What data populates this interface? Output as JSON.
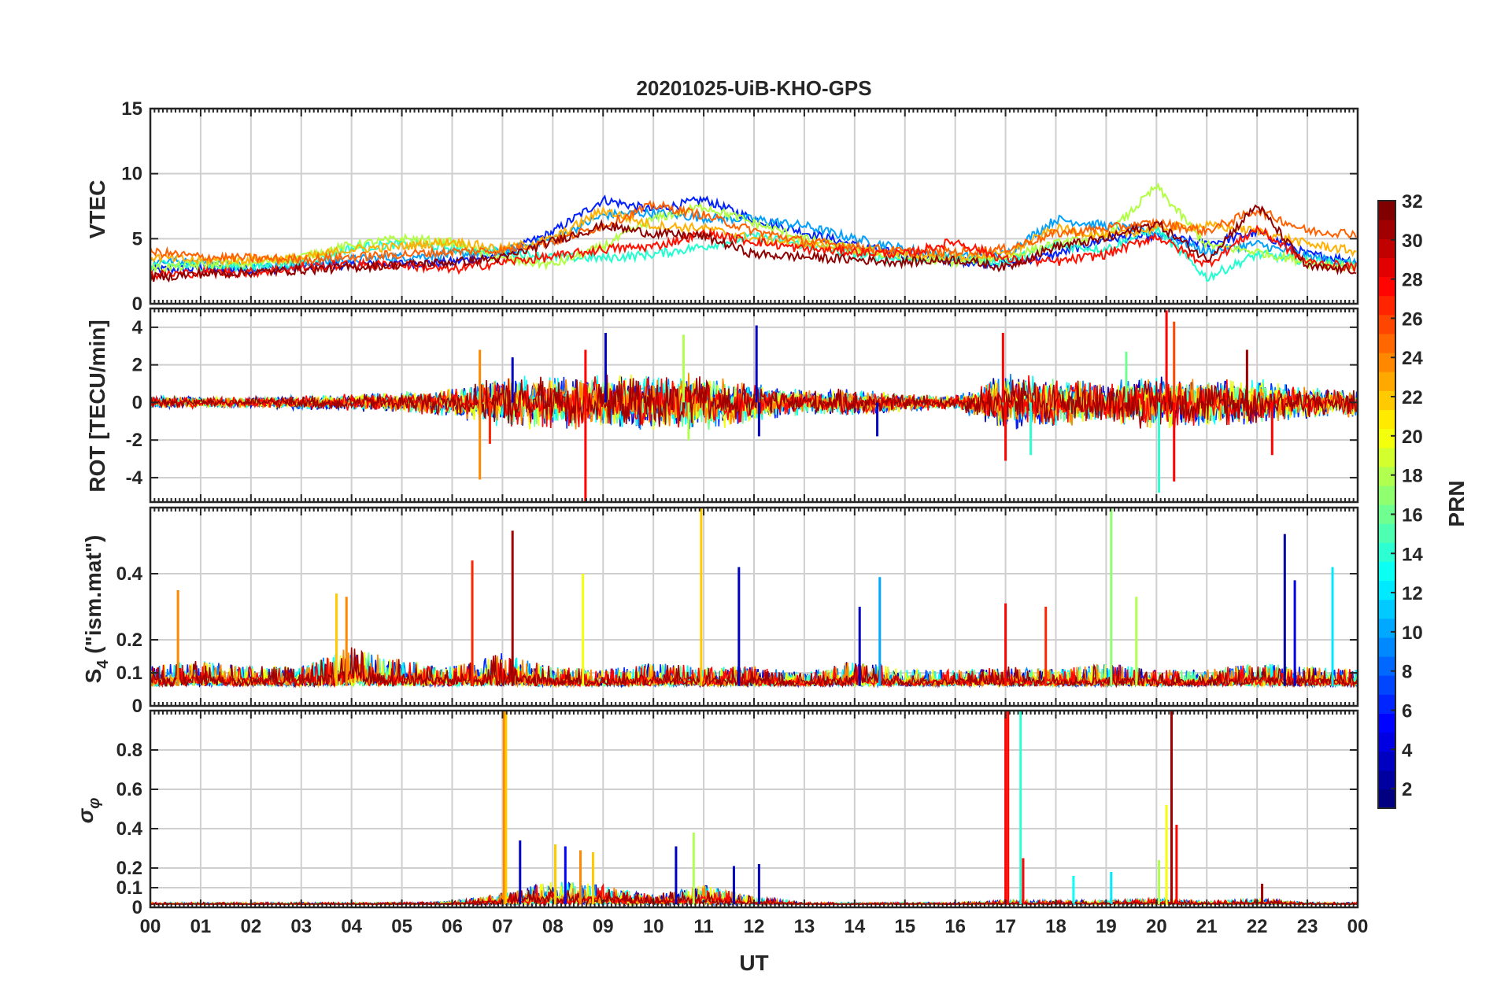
{
  "figure": {
    "title": "20201025-UiB-KHO-GPS",
    "xlabel": "UT",
    "x_tick_labels": [
      "00",
      "01",
      "02",
      "03",
      "04",
      "05",
      "06",
      "07",
      "08",
      "09",
      "10",
      "11",
      "12",
      "13",
      "14",
      "15",
      "16",
      "17",
      "18",
      "19",
      "20",
      "21",
      "22",
      "23",
      "00"
    ],
    "colorbar": {
      "label": "PRN",
      "range": [
        1,
        32
      ],
      "tick_values": [
        2,
        4,
        6,
        8,
        10,
        12,
        14,
        16,
        18,
        20,
        22,
        24,
        26,
        28,
        30,
        32
      ],
      "tick_labels": [
        "2",
        "4",
        "6",
        "8",
        "10",
        "12",
        "14",
        "16",
        "18",
        "20",
        "22",
        "24",
        "26",
        "28",
        "30",
        "32"
      ],
      "colormap": "jet"
    }
  },
  "chart_data": [
    {
      "type": "line",
      "panel": "vtec",
      "ylabel": "VTEC",
      "xlim": [
        0,
        24
      ],
      "ylim": [
        0,
        15
      ],
      "y_tick_labels": [
        "0",
        "5",
        "10",
        "15"
      ],
      "y_tick_values": [
        0,
        5,
        10,
        15
      ],
      "grid": true,
      "x_unit": "hours UT",
      "series": [
        {
          "prn": 3,
          "color": "#0020ff",
          "x": [
            0,
            1,
            2,
            3,
            4,
            5,
            6,
            7,
            8,
            9,
            10,
            11,
            12,
            13,
            14,
            15,
            16,
            17,
            18,
            19,
            20,
            21,
            22,
            23,
            24
          ],
          "y": [
            2.6,
            2.7,
            2.6,
            2.9,
            3.0,
            3.1,
            3.2,
            3.8,
            5.5,
            8.0,
            7.2,
            8.0,
            6.5,
            5.5,
            4.5,
            3.7,
            3.3,
            3.1,
            3.8,
            5.0,
            5.2,
            4.6,
            5.5,
            3.8,
            3.3
          ]
        },
        {
          "prn": 9,
          "color": "#00a0ff",
          "x": [
            0,
            1,
            2,
            3,
            4,
            5,
            6,
            7,
            8,
            9,
            10,
            11,
            12,
            13,
            14,
            15,
            16,
            17,
            18,
            19,
            20,
            21,
            22,
            23,
            24
          ],
          "y": [
            3.3,
            3.2,
            2.8,
            3.0,
            3.4,
            3.6,
            3.8,
            4.0,
            5.0,
            6.8,
            7.0,
            6.6,
            6.5,
            6.0,
            5.0,
            4.2,
            3.6,
            3.8,
            6.5,
            6.0,
            5.5,
            4.0,
            4.6,
            3.6,
            3.0
          ]
        },
        {
          "prn": 14,
          "color": "#20ffd0",
          "x": [
            0,
            1,
            2,
            3,
            4,
            5,
            6,
            7,
            8,
            9,
            10,
            11,
            12,
            13,
            14,
            15,
            16,
            17,
            18,
            19,
            20,
            21,
            22,
            23,
            24
          ],
          "y": [
            3.0,
            2.9,
            2.8,
            3.2,
            4.3,
            4.6,
            4.3,
            4.0,
            3.6,
            3.5,
            3.8,
            4.4,
            5.2,
            4.5,
            3.8,
            3.4,
            3.6,
            3.2,
            4.5,
            4.2,
            5.8,
            2.0,
            3.8,
            3.3,
            3.0
          ]
        },
        {
          "prn": 18,
          "color": "#b0ff40",
          "x": [
            0,
            1,
            2,
            3,
            4,
            5,
            6,
            7,
            8,
            9,
            10,
            11,
            12,
            13,
            14,
            15,
            16,
            17,
            18,
            19,
            20,
            21,
            22,
            23,
            24
          ],
          "y": [
            2.7,
            3.0,
            3.1,
            3.6,
            4.5,
            5.0,
            4.7,
            3.4,
            3.0,
            4.4,
            6.5,
            7.5,
            6.2,
            5.0,
            4.2,
            3.6,
            3.2,
            3.6,
            4.6,
            5.2,
            9.0,
            4.5,
            4.0,
            3.2,
            2.8
          ]
        },
        {
          "prn": 22,
          "color": "#ffb000",
          "x": [
            0,
            1,
            2,
            3,
            4,
            5,
            6,
            7,
            8,
            9,
            10,
            11,
            12,
            13,
            14,
            15,
            16,
            17,
            18,
            19,
            20,
            21,
            22,
            23,
            24
          ],
          "y": [
            3.6,
            3.3,
            3.4,
            3.5,
            4.2,
            4.4,
            4.8,
            4.2,
            5.0,
            7.2,
            6.0,
            5.8,
            5.0,
            4.6,
            4.2,
            3.8,
            3.6,
            3.8,
            5.8,
            5.2,
            5.8,
            6.0,
            5.6,
            4.6,
            4.0
          ]
        },
        {
          "prn": 26,
          "color": "#ff6000",
          "x": [
            0,
            1,
            2,
            3,
            4,
            5,
            6,
            7,
            8,
            9,
            10,
            11,
            12,
            13,
            14,
            15,
            16,
            17,
            18,
            19,
            20,
            21,
            22,
            23,
            24
          ],
          "y": [
            4.0,
            3.6,
            3.5,
            3.4,
            3.6,
            3.8,
            4.0,
            4.1,
            4.8,
            6.0,
            7.6,
            6.8,
            5.6,
            4.8,
            4.4,
            4.0,
            4.0,
            4.2,
            5.4,
            5.8,
            6.2,
            5.6,
            7.2,
            5.6,
            5.4
          ]
        },
        {
          "prn": 28,
          "color": "#ff1000",
          "x": [
            0,
            1,
            2,
            3,
            4,
            5,
            6,
            7,
            8,
            9,
            10,
            11,
            12,
            13,
            14,
            15,
            16,
            17,
            18,
            19,
            20,
            21,
            22,
            23,
            24
          ],
          "y": [
            2.2,
            2.4,
            2.4,
            2.8,
            3.0,
            3.0,
            2.6,
            3.2,
            3.6,
            4.2,
            4.4,
            5.4,
            4.8,
            4.2,
            4.0,
            3.8,
            4.8,
            3.4,
            3.2,
            3.8,
            5.2,
            3.0,
            5.8,
            3.2,
            2.8
          ]
        },
        {
          "prn": 31,
          "color": "#900000",
          "x": [
            0,
            1,
            2,
            3,
            4,
            5,
            6,
            7,
            8,
            9,
            10,
            11,
            12,
            13,
            14,
            15,
            16,
            17,
            18,
            19,
            20,
            21,
            22,
            23,
            24
          ],
          "y": [
            2.0,
            2.3,
            2.4,
            2.6,
            2.8,
            3.0,
            3.2,
            3.5,
            4.8,
            6.0,
            5.4,
            5.2,
            3.8,
            3.6,
            3.4,
            3.2,
            3.4,
            2.8,
            4.4,
            5.0,
            6.2,
            3.4,
            7.6,
            2.8,
            2.6
          ]
        }
      ]
    },
    {
      "type": "line",
      "panel": "rot",
      "ylabel": "ROT [TECU/min]",
      "xlim": [
        0,
        24
      ],
      "ylim": [
        -5.3,
        5
      ],
      "y_tick_labels": [
        "-4",
        "-2",
        "0",
        "2",
        "4"
      ],
      "y_tick_values": [
        -4,
        -2,
        0,
        2,
        4
      ],
      "grid": true,
      "x_unit": "hours UT",
      "baseline": 0,
      "spikes": [
        {
          "x": 6.55,
          "y": -4.1,
          "prn": 24
        },
        {
          "x": 6.55,
          "y": 2.8,
          "prn": 24
        },
        {
          "x": 6.75,
          "y": -2.2,
          "prn": 27
        },
        {
          "x": 7.2,
          "y": 2.4,
          "prn": 3
        },
        {
          "x": 8.65,
          "y": -5.3,
          "prn": 28
        },
        {
          "x": 8.65,
          "y": 2.8,
          "prn": 28
        },
        {
          "x": 9.05,
          "y": 3.7,
          "prn": 3
        },
        {
          "x": 10.6,
          "y": 3.6,
          "prn": 18
        },
        {
          "x": 10.7,
          "y": -2.0,
          "prn": 18
        },
        {
          "x": 12.05,
          "y": 4.1,
          "prn": 3
        },
        {
          "x": 12.1,
          "y": -1.8,
          "prn": 3
        },
        {
          "x": 14.45,
          "y": -1.8,
          "prn": 3
        },
        {
          "x": 16.95,
          "y": 3.7,
          "prn": 28
        },
        {
          "x": 17.0,
          "y": -3.1,
          "prn": 28
        },
        {
          "x": 17.5,
          "y": -2.8,
          "prn": 14
        },
        {
          "x": 19.4,
          "y": 2.7,
          "prn": 16
        },
        {
          "x": 20.05,
          "y": -4.8,
          "prn": 14
        },
        {
          "x": 20.2,
          "y": 4.9,
          "prn": 28
        },
        {
          "x": 20.35,
          "y": -4.2,
          "prn": 28
        },
        {
          "x": 20.35,
          "y": 4.3,
          "prn": 26
        },
        {
          "x": 21.8,
          "y": 2.8,
          "prn": 31
        },
        {
          "x": 22.3,
          "y": -2.8,
          "prn": 28
        }
      ],
      "noise_amplitude_by_hour": [
        0.4,
        0.3,
        0.3,
        0.4,
        0.5,
        0.6,
        0.8,
        1.4,
        1.6,
        1.5,
        1.6,
        1.6,
        1.1,
        0.7,
        0.8,
        0.5,
        0.4,
        1.6,
        1.4,
        1.2,
        1.6,
        1.3,
        1.3,
        0.9,
        0.8
      ]
    },
    {
      "type": "line",
      "panel": "s4",
      "ylabel": "S4 (\"ism.mat\")",
      "ylabel_main": "S",
      "ylabel_sub": "4",
      "ylabel_rest": " (\"ism.mat\")",
      "xlim": [
        0,
        24
      ],
      "ylim": [
        0,
        0.6
      ],
      "y_tick_labels": [
        "0",
        "0.1",
        "0.2",
        "0.4"
      ],
      "y_tick_values": [
        0,
        0.1,
        0.2,
        0.4
      ],
      "grid": true,
      "x_unit": "hours UT",
      "baseline": 0.06,
      "spikes": [
        {
          "x": 0.55,
          "y": 0.35,
          "prn": 24
        },
        {
          "x": 3.7,
          "y": 0.34,
          "prn": 22
        },
        {
          "x": 3.9,
          "y": 0.33,
          "prn": 24
        },
        {
          "x": 6.4,
          "y": 0.44,
          "prn": 27
        },
        {
          "x": 7.2,
          "y": 0.53,
          "prn": 31
        },
        {
          "x": 8.6,
          "y": 0.4,
          "prn": 20
        },
        {
          "x": 10.95,
          "y": 0.6,
          "prn": 22
        },
        {
          "x": 11.7,
          "y": 0.42,
          "prn": 3
        },
        {
          "x": 14.1,
          "y": 0.3,
          "prn": 3
        },
        {
          "x": 14.5,
          "y": 0.39,
          "prn": 10
        },
        {
          "x": 17.0,
          "y": 0.31,
          "prn": 28
        },
        {
          "x": 17.8,
          "y": 0.3,
          "prn": 27
        },
        {
          "x": 19.1,
          "y": 0.6,
          "prn": 17
        },
        {
          "x": 19.6,
          "y": 0.33,
          "prn": 18
        },
        {
          "x": 22.55,
          "y": 0.52,
          "prn": 2
        },
        {
          "x": 22.75,
          "y": 0.38,
          "prn": 4
        },
        {
          "x": 23.5,
          "y": 0.42,
          "prn": 12
        }
      ],
      "noise_amplitude_by_hour": [
        0.06,
        0.08,
        0.06,
        0.06,
        0.12,
        0.08,
        0.06,
        0.1,
        0.06,
        0.05,
        0.07,
        0.06,
        0.06,
        0.04,
        0.08,
        0.05,
        0.05,
        0.06,
        0.05,
        0.07,
        0.05,
        0.05,
        0.07,
        0.06,
        0.05
      ]
    },
    {
      "type": "line",
      "panel": "sigma_phi",
      "ylabel": "σφ",
      "ylabel_main": "σ",
      "ylabel_sub": "φ",
      "xlim": [
        0,
        24
      ],
      "ylim": [
        0,
        1.0
      ],
      "y_tick_labels": [
        "0",
        "0.1",
        "0.2",
        "0.4",
        "0.6",
        "0.8"
      ],
      "y_tick_values": [
        0,
        0.1,
        0.2,
        0.4,
        0.6,
        0.8
      ],
      "grid": true,
      "x_unit": "hours UT",
      "baseline": 0.015,
      "spikes": [
        {
          "x": 7.03,
          "y": 1.0,
          "prn": 24
        },
        {
          "x": 7.07,
          "y": 1.0,
          "prn": 22
        },
        {
          "x": 7.35,
          "y": 0.34,
          "prn": 3
        },
        {
          "x": 8.05,
          "y": 0.32,
          "prn": 22
        },
        {
          "x": 8.25,
          "y": 0.31,
          "prn": 5
        },
        {
          "x": 8.55,
          "y": 0.29,
          "prn": 24
        },
        {
          "x": 8.8,
          "y": 0.28,
          "prn": 22
        },
        {
          "x": 10.45,
          "y": 0.31,
          "prn": 3
        },
        {
          "x": 10.8,
          "y": 0.38,
          "prn": 18
        },
        {
          "x": 11.6,
          "y": 0.21,
          "prn": 3
        },
        {
          "x": 12.1,
          "y": 0.22,
          "prn": 3
        },
        {
          "x": 17.0,
          "y": 1.0,
          "prn": 28
        },
        {
          "x": 17.05,
          "y": 1.0,
          "prn": 28
        },
        {
          "x": 17.3,
          "y": 1.0,
          "prn": 14
        },
        {
          "x": 17.35,
          "y": 0.25,
          "prn": 28
        },
        {
          "x": 18.35,
          "y": 0.16,
          "prn": 13
        },
        {
          "x": 19.1,
          "y": 0.18,
          "prn": 12
        },
        {
          "x": 20.05,
          "y": 0.24,
          "prn": 18
        },
        {
          "x": 20.2,
          "y": 0.52,
          "prn": 20
        },
        {
          "x": 20.3,
          "y": 1.0,
          "prn": 31
        },
        {
          "x": 20.4,
          "y": 0.42,
          "prn": 28
        },
        {
          "x": 22.1,
          "y": 0.12,
          "prn": 31
        }
      ],
      "noise_amplitude_by_hour": [
        0.01,
        0.01,
        0.01,
        0.01,
        0.01,
        0.01,
        0.015,
        0.06,
        0.12,
        0.1,
        0.05,
        0.1,
        0.04,
        0.01,
        0.01,
        0.01,
        0.01,
        0.02,
        0.02,
        0.02,
        0.03,
        0.015,
        0.03,
        0.01,
        0.01
      ]
    }
  ]
}
